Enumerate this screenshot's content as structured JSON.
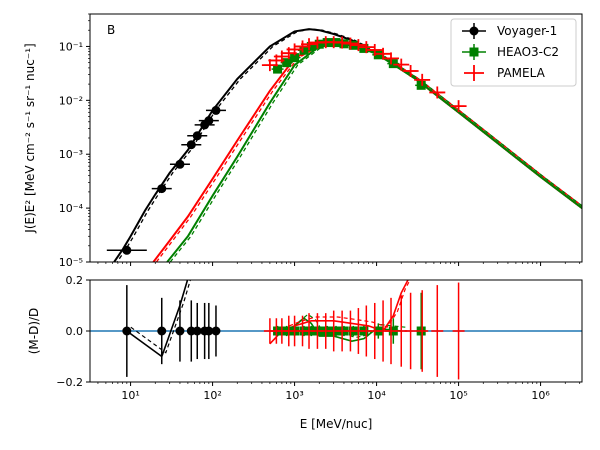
{
  "chart_data": [
    {
      "type": "line",
      "panel_label": "B",
      "ylabel": "J(E)E² [MeV cm⁻² s⁻¹ sr⁻¹ nuc⁻¹]",
      "xlabel": "",
      "xscale": "log",
      "yscale": "log",
      "xlim": [
        3.2,
        3200000
      ],
      "ylim": [
        1e-05,
        0.4
      ],
      "x_ticks": [
        "10¹",
        "10²",
        "10³",
        "10⁴",
        "10⁵",
        "10⁶"
      ],
      "y_ticks": [
        "10⁻⁵",
        "10⁻⁴",
        "10⁻³",
        "10⁻²",
        "10⁻¹"
      ],
      "legend": [
        "Voyager-1",
        "HEAO3-C2",
        "PAMELA"
      ],
      "legend_position": "top-right",
      "series": [
        {
          "name": "Voyager-1",
          "color": "#000000",
          "marker": "circle",
          "x": [
            9,
            24,
            40,
            55,
            65,
            80,
            90,
            110
          ],
          "y": [
            1.65e-05,
            0.00023,
            0.00065,
            0.0015,
            0.0022,
            0.0035,
            0.0042,
            0.0065
          ]
        },
        {
          "name": "HEAO3-C2",
          "color": "#008000",
          "marker": "square",
          "x": [
            620,
            800,
            1000,
            1300,
            1600,
            2000,
            2500,
            3200,
            4000,
            5200,
            7000,
            10500,
            16000,
            35000
          ],
          "y": [
            0.038,
            0.05,
            0.062,
            0.085,
            0.1,
            0.11,
            0.118,
            0.118,
            0.112,
            0.105,
            0.092,
            0.07,
            0.048,
            0.019
          ]
        },
        {
          "name": "PAMELA",
          "color": "#ff0000",
          "marker": "plus",
          "x": [
            500,
            600,
            700,
            850,
            1000,
            1250,
            1500,
            1900,
            2400,
            3000,
            3800,
            4800,
            6000,
            7500,
            9500,
            12000,
            15000,
            20000,
            26000,
            36000,
            55000,
            100000
          ],
          "y": [
            0.045,
            0.055,
            0.065,
            0.075,
            0.088,
            0.1,
            0.11,
            0.118,
            0.12,
            0.12,
            0.118,
            0.113,
            0.106,
            0.097,
            0.086,
            0.073,
            0.06,
            0.046,
            0.035,
            0.024,
            0.014,
            0.0078
          ]
        },
        {
          "name": "model (black)",
          "color": "#000000",
          "x": [
            6,
            8,
            10,
            15,
            20,
            30,
            50,
            100,
            200,
            500,
            1000,
            1500,
            2000,
            3000,
            5000,
            10000,
            30000,
            100000,
            1000000,
            3200000
          ],
          "y": [
            9e-06,
            1.7e-05,
            3e-05,
            9e-05,
            0.00018,
            0.00045,
            0.0012,
            0.0065,
            0.025,
            0.1,
            0.19,
            0.21,
            0.2,
            0.17,
            0.13,
            0.075,
            0.025,
            0.006,
            0.00038,
            0.0001
          ]
        },
        {
          "name": "model (red)",
          "color": "#ff0000",
          "x": [
            19,
            30,
            50,
            100,
            200,
            500,
            1000,
            2000,
            3000,
            5000,
            10000,
            30000,
            100000,
            1000000,
            3200000
          ],
          "y": [
            1e-05,
            2.5e-05,
            7e-05,
            0.00035,
            0.0018,
            0.015,
            0.06,
            0.11,
            0.12,
            0.11,
            0.075,
            0.025,
            0.006,
            0.00038,
            0.0001
          ]
        },
        {
          "name": "model (green)",
          "color": "#008000",
          "x": [
            28,
            50,
            100,
            200,
            500,
            1000,
            2000,
            3000,
            5000,
            10000,
            30000,
            100000,
            1000000,
            3200000
          ],
          "y": [
            1e-05,
            3e-05,
            0.00017,
            0.0009,
            0.009,
            0.045,
            0.1,
            0.115,
            0.107,
            0.073,
            0.025,
            0.006,
            0.00038,
            0.0001
          ]
        }
      ]
    },
    {
      "type": "line",
      "xlabel": "E [MeV/nuc]",
      "ylabel": "(M-D)/D",
      "xscale": "log",
      "xlim": [
        3.2,
        3200000
      ],
      "ylim": [
        -0.2,
        0.2
      ],
      "y_ticks": [
        "−0.2",
        "0.0",
        "0.2"
      ],
      "reference_line": {
        "y": 0,
        "color": "#1f77b4"
      },
      "series": [
        {
          "name": "Voyager-1 residuals",
          "color": "#000000",
          "x": [
            9,
            24,
            40,
            55,
            65,
            80,
            90,
            110
          ],
          "y": [
            0,
            0,
            0,
            0,
            0,
            0,
            0,
            0
          ],
          "err": [
            0.18,
            0.13,
            0.12,
            0.12,
            0.11,
            0.11,
            0.11,
            0.1
          ]
        },
        {
          "name": "HEAO3-C2 residuals",
          "color": "#008000",
          "x": [
            620,
            800,
            1000,
            1300,
            1600,
            2000,
            2500,
            3200,
            4000,
            5200,
            7000,
            10500,
            16000,
            35000
          ],
          "y": [
            0,
            0,
            0,
            0,
            0,
            0,
            0,
            0,
            0,
            0,
            0,
            0,
            0,
            0
          ],
          "err": [
            0.02,
            0.02,
            0.02,
            0.02,
            0.02,
            0.02,
            0.02,
            0.02,
            0.02,
            0.02,
            0.02,
            0.03,
            0.05,
            0.15
          ]
        },
        {
          "name": "PAMELA residuals",
          "color": "#ff0000",
          "x": [
            500,
            600,
            700,
            850,
            1000,
            1250,
            1500,
            1900,
            2400,
            3000,
            3800,
            4800,
            6000,
            7500,
            9500,
            12000,
            15000,
            20000,
            26000,
            36000,
            55000,
            100000
          ],
          "y": [
            0,
            0,
            0,
            0,
            0,
            0,
            0,
            0,
            0,
            0,
            0,
            0,
            0,
            0,
            0,
            0,
            0,
            0,
            0,
            0,
            0,
            0
          ],
          "err": [
            0.05,
            0.05,
            0.05,
            0.06,
            0.06,
            0.06,
            0.07,
            0.07,
            0.07,
            0.08,
            0.08,
            0.08,
            0.09,
            0.1,
            0.11,
            0.12,
            0.13,
            0.14,
            0.15,
            0.16,
            0.18,
            0.19
          ]
        },
        {
          "name": "model (green) residual",
          "color": "#008000",
          "x": [
            1000,
            1300,
            1600,
            2000,
            3000,
            5000,
            7000,
            10000,
            20000
          ],
          "y": [
            0.02,
            0.05,
            0.03,
            -0.02,
            -0.02,
            -0.04,
            -0.03,
            0.01,
            0.0
          ]
        },
        {
          "name": "model (red) residual",
          "color": "#ff0000",
          "x": [
            500,
            700,
            1000,
            1600,
            2000,
            3000,
            5000,
            8000,
            12000,
            16000,
            20000,
            26000,
            40000
          ],
          "y": [
            -0.05,
            0.0,
            0.02,
            0.04,
            0.04,
            0.04,
            0.03,
            0.02,
            0.0,
            0.06,
            0.15,
            0.22,
            0.3
          ]
        },
        {
          "name": "model (black) residual",
          "color": "#000000",
          "x": [
            9,
            24,
            40,
            55
          ],
          "y": [
            0,
            -0.1,
            0.1,
            0.25
          ]
        }
      ]
    }
  ]
}
